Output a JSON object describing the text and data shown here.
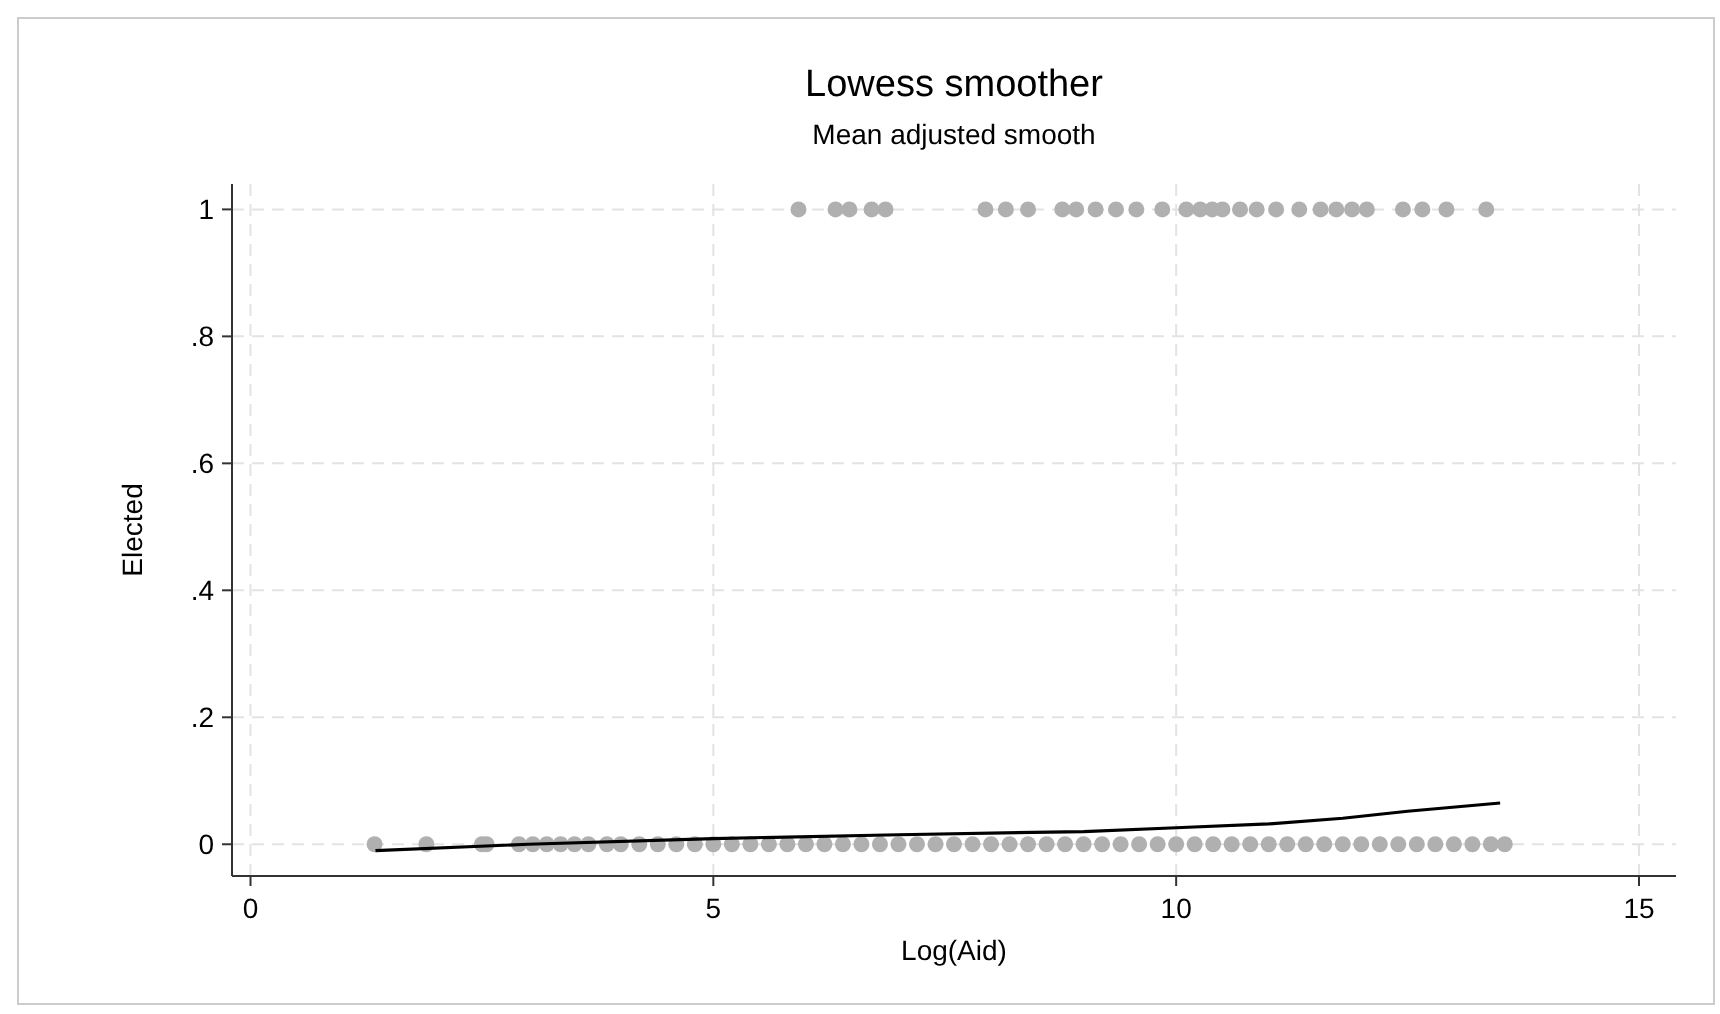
{
  "chart_data": {
    "type": "scatter",
    "title": "Lowess smoother",
    "subtitle": "Mean adjusted smooth",
    "xlabel": "Log(Aid)",
    "ylabel": "Elected",
    "xlim": [
      -0.2,
      15.4
    ],
    "ylim": [
      -0.05,
      1.04
    ],
    "xticks": [
      0,
      5,
      10,
      15
    ],
    "yticks": [
      {
        "value": 0,
        "label": "0"
      },
      {
        "value": 0.2,
        "label": ".2"
      },
      {
        "value": 0.4,
        "label": ".4"
      },
      {
        "value": 0.6,
        "label": ".6"
      },
      {
        "value": 0.8,
        "label": ".8"
      },
      {
        "value": 1,
        "label": "1"
      }
    ],
    "grid": true,
    "marker": "circle",
    "series": [
      {
        "color": "#b0b0b0",
        "x": [
          5.92,
          6.32,
          6.47,
          6.71,
          6.86,
          7.94,
          8.16,
          8.4,
          8.77,
          8.92,
          9.13,
          9.35,
          9.57,
          9.85,
          10.11,
          10.26,
          10.39,
          10.5,
          10.69,
          10.87,
          11.08,
          11.33,
          11.56,
          11.73,
          11.9,
          12.06,
          12.45,
          12.66,
          12.92,
          13.35
        ],
        "values": [
          1,
          1,
          1,
          1,
          1,
          1,
          1,
          1,
          1,
          1,
          1,
          1,
          1,
          1,
          1,
          1,
          1,
          1,
          1,
          1,
          1,
          1,
          1,
          1,
          1,
          1,
          1,
          1,
          1,
          1
        ]
      },
      {
        "color": "#b0b0b0",
        "x": [
          1.34,
          1.9,
          2.5,
          2.55,
          2.9,
          3.05,
          3.2,
          3.35,
          3.5,
          3.65,
          3.85,
          4.0,
          4.2,
          4.4,
          4.6,
          4.8,
          5.0,
          5.2,
          5.4,
          5.6,
          5.8,
          6.0,
          6.2,
          6.4,
          6.6,
          6.8,
          7.0,
          7.2,
          7.4,
          7.6,
          7.8,
          8.0,
          8.2,
          8.4,
          8.6,
          8.8,
          9.0,
          9.2,
          9.4,
          9.6,
          9.8,
          10.0,
          10.2,
          10.4,
          10.6,
          10.8,
          11.0,
          11.2,
          11.4,
          11.6,
          11.8,
          12.0,
          12.2,
          12.4,
          12.6,
          12.8,
          13.0,
          13.2,
          13.4,
          13.55
        ],
        "values": [
          0,
          0,
          0,
          0,
          0,
          0,
          0,
          0,
          0,
          0,
          0,
          0,
          0,
          0,
          0,
          0,
          0,
          0,
          0,
          0,
          0,
          0,
          0,
          0,
          0,
          0,
          0,
          0,
          0,
          0,
          0,
          0,
          0,
          0,
          0,
          0,
          0,
          0,
          0,
          0,
          0,
          0,
          0,
          0,
          0,
          0,
          0,
          0,
          0,
          0,
          0,
          0,
          0,
          0,
          0,
          0,
          0,
          0,
          0,
          0
        ]
      },
      {
        "type": "line",
        "color": "#000000",
        "marker": "none",
        "x": [
          1.35,
          3,
          5,
          7,
          9,
          10,
          11,
          11.8,
          12.5,
          13.5
        ],
        "values": [
          -0.01,
          0,
          0.009,
          0.015,
          0.02,
          0.026,
          0.032,
          0.041,
          0.052,
          0.065
        ]
      }
    ]
  }
}
